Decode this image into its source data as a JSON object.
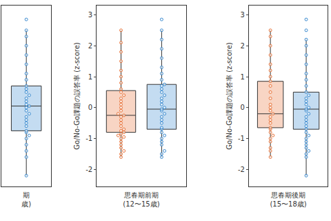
{
  "chart_data": [
    {
      "type": "box",
      "x_label": "期\n歳)",
      "ylim": [
        -2.55,
        3.3
      ],
      "yticks": [
        -2,
        -1,
        0,
        1,
        2,
        3
      ],
      "tick_labels": false,
      "series": [
        {
          "color": "#3b8bd0",
          "q1": -0.75,
          "median": 0.05,
          "q3": 0.7,
          "lower": -2.2,
          "upper": 2.5,
          "values": [
            -2.2,
            -1.6,
            -1.4,
            -1.2,
            -1.0,
            -0.9,
            -0.8,
            -0.75,
            -0.6,
            -0.5,
            -0.4,
            -0.3,
            -0.2,
            -0.1,
            0.0,
            0.05,
            0.1,
            0.2,
            0.3,
            0.4,
            0.5,
            0.6,
            0.7,
            0.9,
            1.1,
            1.4,
            1.7,
            2.0,
            2.3,
            2.5,
            2.85
          ]
        }
      ]
    },
    {
      "type": "box",
      "x_label": "思春期前期\n(12〜15歳)",
      "y_label": "Go/No-Go課題の誤答率 (z-score)",
      "ylim": [
        -2.55,
        3.3
      ],
      "yticks": [
        -2,
        -1,
        0,
        1,
        2,
        3
      ],
      "tick_labels": "y",
      "series": [
        {
          "color": "#e8743b",
          "q1": -0.8,
          "median": -0.25,
          "q3": 0.55,
          "lower": -1.6,
          "upper": 2.5,
          "values": [
            -1.6,
            -1.5,
            -1.4,
            -1.3,
            -1.2,
            -1.1,
            -1.0,
            -0.95,
            -0.9,
            -0.85,
            -0.8,
            -0.75,
            -0.7,
            -0.6,
            -0.5,
            -0.4,
            -0.3,
            -0.25,
            -0.2,
            -0.1,
            0.0,
            0.1,
            0.2,
            0.3,
            0.4,
            0.5,
            0.6,
            0.8,
            1.0,
            1.2,
            1.5,
            1.8,
            2.1,
            2.5
          ]
        },
        {
          "color": "#3b8bd0",
          "q1": -0.7,
          "median": -0.05,
          "q3": 0.75,
          "lower": -1.6,
          "upper": 2.5,
          "values": [
            -1.6,
            -1.5,
            -1.4,
            -1.2,
            -1.1,
            -1.0,
            -0.9,
            -0.8,
            -0.7,
            -0.65,
            -0.5,
            -0.4,
            -0.3,
            -0.2,
            -0.1,
            -0.05,
            0.0,
            0.1,
            0.2,
            0.3,
            0.4,
            0.5,
            0.6,
            0.7,
            0.75,
            0.9,
            1.1,
            1.3,
            1.6,
            1.9,
            2.2,
            2.5,
            2.85
          ]
        }
      ]
    },
    {
      "type": "box",
      "x_label": "思春期後期\n(15〜18歳)",
      "y_label": "Go/No-Go課題の誤答率 (z-score)",
      "ylim": [
        -2.55,
        3.3
      ],
      "yticks": [
        -2,
        -1,
        0,
        1,
        2,
        3
      ],
      "tick_labels": "y",
      "series": [
        {
          "color": "#e8743b",
          "q1": -0.65,
          "median": -0.2,
          "q3": 0.85,
          "lower": -1.6,
          "upper": 2.5,
          "values": [
            -1.6,
            -1.4,
            -1.3,
            -1.1,
            -1.0,
            -0.9,
            -0.8,
            -0.7,
            -0.65,
            -0.5,
            -0.4,
            -0.3,
            -0.2,
            -0.1,
            0.0,
            0.1,
            0.3,
            0.5,
            0.7,
            0.85,
            1.0,
            1.2,
            1.4,
            1.7,
            2.0,
            2.3,
            2.5
          ]
        },
        {
          "color": "#3b8bd0",
          "q1": -0.7,
          "median": -0.05,
          "q3": 0.5,
          "lower": -2.2,
          "upper": 2.2,
          "values": [
            -2.2,
            -1.6,
            -1.5,
            -1.4,
            -1.3,
            -1.2,
            -1.1,
            -1.0,
            -0.9,
            -0.8,
            -0.7,
            -0.6,
            -0.5,
            -0.4,
            -0.3,
            -0.2,
            -0.1,
            -0.05,
            0.0,
            0.1,
            0.2,
            0.3,
            0.4,
            0.5,
            0.7,
            0.9,
            1.1,
            1.4,
            1.7,
            2.0,
            2.2,
            2.5,
            2.85
          ]
        }
      ]
    }
  ]
}
